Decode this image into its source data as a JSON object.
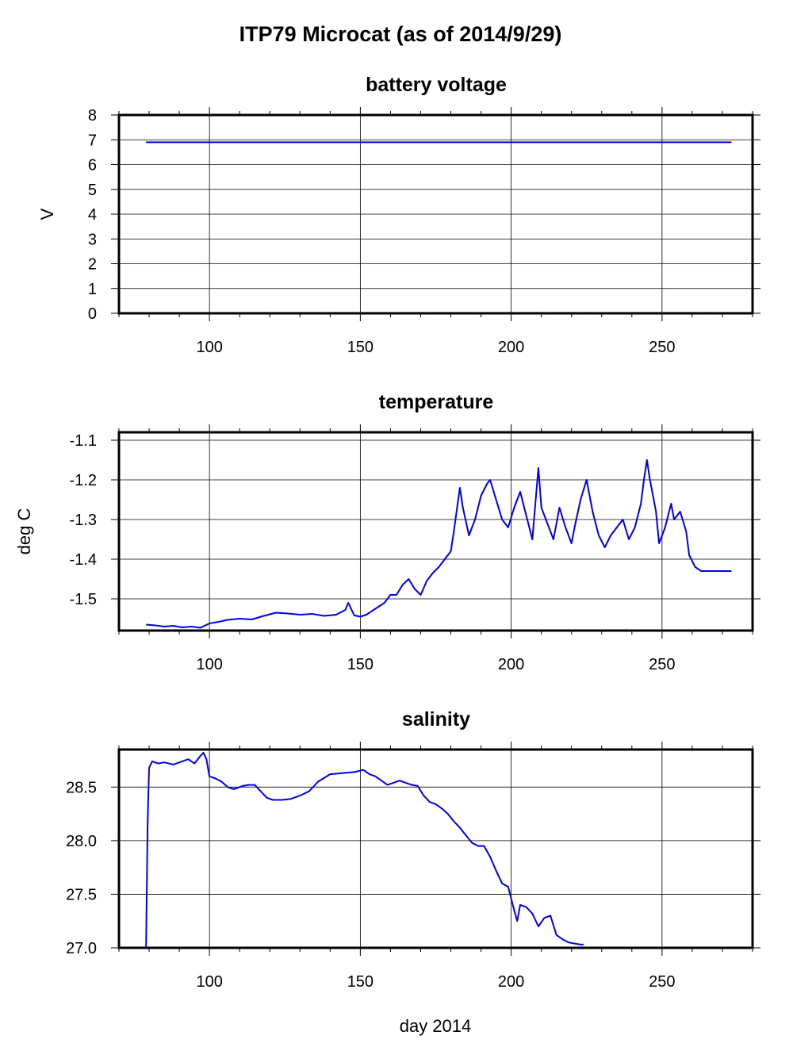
{
  "figure_title": "ITP79 Microcat  (as of 2014/9/29)",
  "xlabel": "day 2014",
  "colors": {
    "series": "#0000ee",
    "axes": "#000000",
    "grid": "#000000"
  },
  "chart_data": [
    {
      "type": "line",
      "title": "battery voltage",
      "ylabel": "V",
      "xlim": [
        70,
        280
      ],
      "ylim": [
        0,
        8
      ],
      "x_ticks": [
        100,
        150,
        200,
        250
      ],
      "y_ticks": [
        0,
        1,
        2,
        3,
        4,
        5,
        6,
        7,
        8
      ],
      "y_tick_labels": [
        "0",
        "1",
        "2",
        "3",
        "4",
        "5",
        "6",
        "7",
        "8"
      ],
      "grid": true,
      "series": [
        {
          "x": [
            79,
            273
          ],
          "values": [
            6.9,
            6.9
          ]
        }
      ]
    },
    {
      "type": "line",
      "title": "temperature",
      "ylabel": "deg C",
      "xlim": [
        70,
        280
      ],
      "ylim": [
        -1.58,
        -1.08
      ],
      "x_ticks": [
        100,
        150,
        200,
        250
      ],
      "y_ticks": [
        -1.5,
        -1.4,
        -1.3,
        -1.2,
        -1.1
      ],
      "y_tick_labels": [
        "-1.5",
        "-1.4",
        "-1.3",
        "-1.2",
        "-1.1"
      ],
      "grid": true,
      "series": [
        {
          "x": [
            79,
            82,
            85,
            88,
            91,
            94,
            97,
            100,
            103,
            106,
            110,
            114,
            118,
            122,
            126,
            130,
            134,
            138,
            142,
            145,
            146,
            148,
            150,
            152,
            154,
            156,
            158,
            160,
            162,
            164,
            166,
            168,
            170,
            172,
            174,
            176,
            178,
            180,
            181,
            183,
            184,
            186,
            188,
            190,
            192,
            193,
            195,
            197,
            199,
            201,
            203,
            205,
            207,
            209,
            210,
            212,
            214,
            216,
            218,
            220,
            221,
            223,
            225,
            227,
            229,
            231,
            233,
            235,
            237,
            239,
            241,
            243,
            244,
            245,
            246,
            248,
            249,
            251,
            253,
            254,
            256,
            258,
            259,
            261,
            263,
            265,
            268,
            270,
            273
          ],
          "values": [
            -1.565,
            -1.567,
            -1.57,
            -1.568,
            -1.572,
            -1.57,
            -1.573,
            -1.562,
            -1.558,
            -1.553,
            -1.55,
            -1.552,
            -1.543,
            -1.535,
            -1.537,
            -1.54,
            -1.538,
            -1.543,
            -1.54,
            -1.528,
            -1.51,
            -1.542,
            -1.545,
            -1.54,
            -1.53,
            -1.52,
            -1.51,
            -1.49,
            -1.49,
            -1.465,
            -1.45,
            -1.475,
            -1.49,
            -1.455,
            -1.435,
            -1.42,
            -1.4,
            -1.38,
            -1.33,
            -1.22,
            -1.27,
            -1.34,
            -1.3,
            -1.24,
            -1.21,
            -1.2,
            -1.25,
            -1.3,
            -1.32,
            -1.27,
            -1.23,
            -1.29,
            -1.35,
            -1.17,
            -1.27,
            -1.31,
            -1.35,
            -1.27,
            -1.32,
            -1.36,
            -1.32,
            -1.25,
            -1.2,
            -1.28,
            -1.34,
            -1.37,
            -1.34,
            -1.32,
            -1.3,
            -1.35,
            -1.32,
            -1.26,
            -1.2,
            -1.15,
            -1.2,
            -1.28,
            -1.36,
            -1.32,
            -1.26,
            -1.3,
            -1.28,
            -1.33,
            -1.39,
            -1.42,
            -1.43,
            -1.43,
            -1.43,
            -1.43,
            -1.43
          ]
        }
      ]
    },
    {
      "type": "line",
      "title": "salinity",
      "ylabel": "",
      "xlim": [
        70,
        280
      ],
      "ylim": [
        27.0,
        28.85
      ],
      "x_ticks": [
        100,
        150,
        200,
        250
      ],
      "x_tick_labels": [
        "100",
        "150",
        "200",
        "250"
      ],
      "y_ticks": [
        27.0,
        27.5,
        28.0,
        28.5
      ],
      "y_tick_labels": [
        "27.0",
        "27.5",
        "28.0",
        "28.5"
      ],
      "grid": true,
      "series": [
        {
          "x": [
            79,
            79.5,
            80,
            81,
            83,
            85,
            88,
            91,
            93,
            95,
            97,
            98,
            99,
            100,
            102,
            104,
            106,
            108,
            111,
            113,
            115,
            117,
            119,
            121,
            124,
            127,
            130,
            133,
            136,
            140,
            144,
            148,
            151,
            153,
            155,
            157,
            159,
            161,
            163,
            165,
            167,
            169,
            171,
            173,
            175,
            177,
            179,
            181,
            183,
            185,
            187,
            189,
            191,
            193,
            195,
            197,
            199,
            201,
            202,
            203,
            205,
            207,
            209,
            211,
            213,
            215,
            217,
            219,
            221,
            223,
            224
          ],
          "values": [
            27.0,
            28.15,
            28.68,
            28.74,
            28.72,
            28.73,
            28.71,
            28.74,
            28.76,
            28.72,
            28.79,
            28.82,
            28.76,
            28.6,
            28.58,
            28.55,
            28.5,
            28.48,
            28.51,
            28.52,
            28.52,
            28.46,
            28.4,
            28.38,
            28.38,
            28.39,
            28.42,
            28.46,
            28.55,
            28.62,
            28.63,
            28.64,
            28.66,
            28.62,
            28.6,
            28.56,
            28.52,
            28.54,
            28.56,
            28.54,
            28.52,
            28.51,
            28.42,
            28.36,
            28.34,
            28.3,
            28.25,
            28.18,
            28.12,
            28.05,
            27.98,
            27.95,
            27.95,
            27.85,
            27.72,
            27.6,
            27.57,
            27.35,
            27.25,
            27.4,
            27.38,
            27.32,
            27.2,
            27.28,
            27.3,
            27.12,
            27.08,
            27.05,
            27.04,
            27.03,
            27.03
          ]
        }
      ]
    }
  ]
}
